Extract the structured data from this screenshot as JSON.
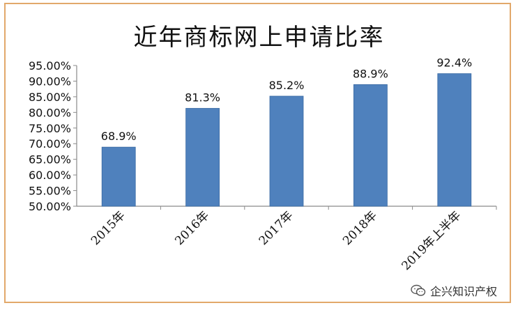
{
  "chart_data": {
    "type": "bar",
    "title": "近年商标网上申请比率",
    "categories": [
      "2015年",
      "2016年",
      "2017年",
      "2018年",
      "2019年上半年"
    ],
    "values": [
      68.9,
      81.3,
      85.2,
      88.9,
      92.4
    ],
    "data_labels": [
      "68.9%",
      "81.3%",
      "85.2%",
      "88.9%",
      "92.4%"
    ],
    "ylim": [
      50,
      95
    ],
    "yticks": [
      50,
      55,
      60,
      65,
      70,
      75,
      80,
      85,
      90,
      95
    ],
    "ytick_labels": [
      "50.00%",
      "55.00%",
      "60.00%",
      "65.00%",
      "70.00%",
      "75.00%",
      "80.00%",
      "85.00%",
      "90.00%",
      "95.00%"
    ],
    "xlabel": "",
    "ylabel": "",
    "grid": false,
    "legend": "none",
    "colors": {
      "bar": "#4f81bd",
      "bar_edge": "#3a6aa3",
      "axis": "#8a8a8a",
      "border": "#e2a86a"
    }
  },
  "watermark": {
    "icon": "wechat-icon",
    "text": "企兴知识产权"
  }
}
